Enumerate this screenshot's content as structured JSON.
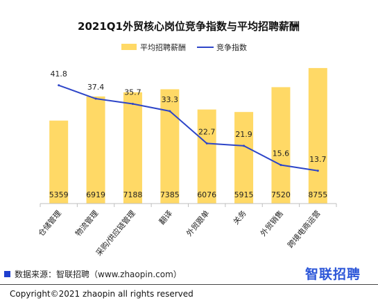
{
  "chart_data": {
    "type": "bar",
    "title": "2021Q1外贸核心岗位竞争指数与平均招聘薪酬",
    "categories": [
      "仓储管理",
      "物流管理",
      "采购/供应链管理",
      "翻译",
      "外贸跟单",
      "关务",
      "外贸销售",
      "跨境电商运营"
    ],
    "series": [
      {
        "name": "平均招聘薪酬",
        "type": "bar",
        "values": [
          5359,
          6919,
          7188,
          7385,
          6076,
          5915,
          7520,
          8755
        ]
      },
      {
        "name": "竞争指数",
        "type": "line",
        "values": [
          41.8,
          37.4,
          35.7,
          33.3,
          22.7,
          21.9,
          15.6,
          13.7
        ]
      }
    ],
    "legend_position": "top-center",
    "grid": false,
    "colors": {
      "bar": "#FFD966",
      "line": "#2D45C8"
    }
  },
  "footer": {
    "source": "数据来源：智联招聘（www.zhaopin.com）",
    "copyright": "Copyright©2021 zhaopin all rights reserved",
    "brand": "智联招聘"
  }
}
